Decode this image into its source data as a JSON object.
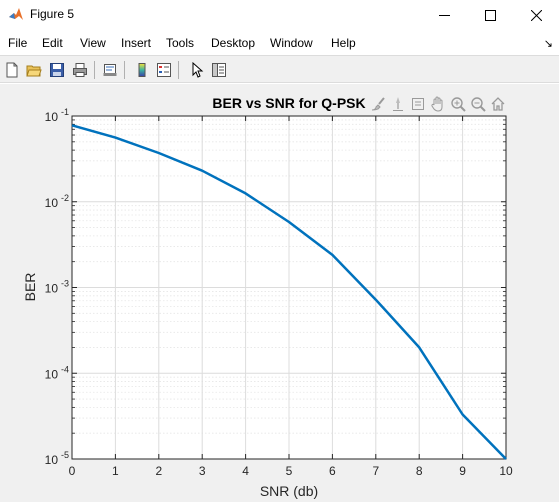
{
  "window": {
    "title": "Figure 5",
    "minimize_icon": "minimize-icon",
    "maximize_icon": "maximize-icon",
    "close_icon": "close-icon"
  },
  "menubar": {
    "items": [
      "File",
      "Edit",
      "View",
      "Insert",
      "Tools",
      "Desktop",
      "Window",
      "Help"
    ],
    "dock_glyph": "↘"
  },
  "toolbar": {
    "buttons": [
      "new-figure-icon",
      "open-file-icon",
      "save-icon",
      "print-icon",
      "link-plot-icon",
      "insert-colorbar-icon",
      "insert-legend-icon",
      "edit-plot-pointer-icon",
      "property-inspector-icon"
    ]
  },
  "axes_toolbar": {
    "buttons": [
      "brush-icon",
      "data-tips-icon",
      "export-icon",
      "pan-hand-icon",
      "zoom-in-icon",
      "zoom-out-icon",
      "home-icon"
    ]
  },
  "colors": {
    "line": "#0072BD",
    "figure_bg": "#f0f0f0",
    "axes_bg": "#ffffff"
  },
  "chart_data": {
    "type": "line",
    "title": "BER vs SNR for Q-PSK",
    "xlabel": "SNR (db)",
    "ylabel": "BER",
    "xlim": [
      0,
      10
    ],
    "ylim": [
      1e-05,
      0.1
    ],
    "yscale": "log",
    "grid": true,
    "minor_grid": true,
    "x_ticks": [
      "0",
      "1",
      "2",
      "3",
      "4",
      "5",
      "6",
      "7",
      "8",
      "9",
      "10"
    ],
    "y_ticks": [
      {
        "base": "10",
        "exp": "-5"
      },
      {
        "base": "10",
        "exp": "-4"
      },
      {
        "base": "10",
        "exp": "-3"
      },
      {
        "base": "10",
        "exp": "-2"
      },
      {
        "base": "10",
        "exp": "-1"
      }
    ],
    "x": [
      0,
      1,
      2,
      3,
      4,
      5,
      6,
      7,
      8,
      9,
      10
    ],
    "series": [
      {
        "values": [
          0.078,
          0.056,
          0.037,
          0.023,
          0.0125,
          0.0058,
          0.0024,
          0.00072,
          0.0002,
          3.3e-05,
          1e-05
        ]
      }
    ]
  }
}
